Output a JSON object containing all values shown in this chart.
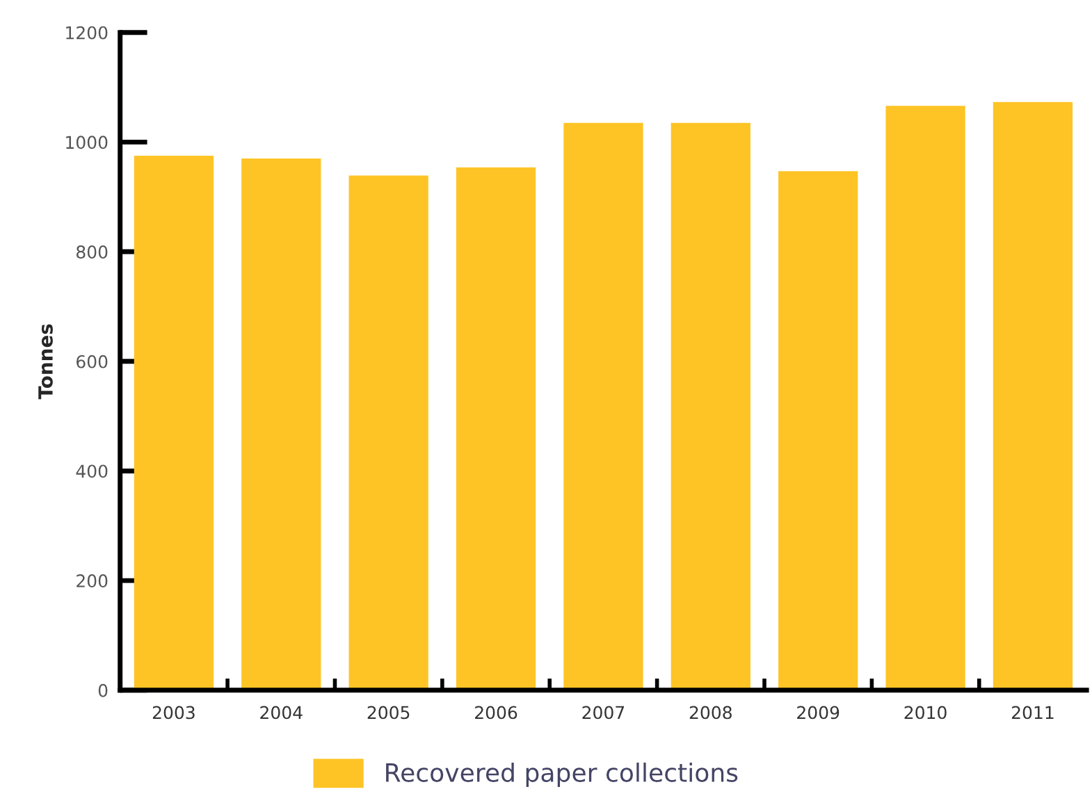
{
  "chart_data": {
    "type": "bar",
    "ylabel": "Tonnes",
    "categories": [
      "2003",
      "2004",
      "2005",
      "2006",
      "2007",
      "2008",
      "2009",
      "2010",
      "2011"
    ],
    "series": [
      {
        "name": "Recovered paper collections",
        "color": "#fec425",
        "values": [
          975,
          970,
          939,
          954,
          1035,
          1035,
          947,
          1066,
          1073
        ]
      }
    ],
    "ylim": [
      0,
      1200
    ],
    "yticks": [
      0,
      200,
      400,
      600,
      800,
      1000,
      1200
    ],
    "grid": false,
    "legend": "bottom"
  }
}
